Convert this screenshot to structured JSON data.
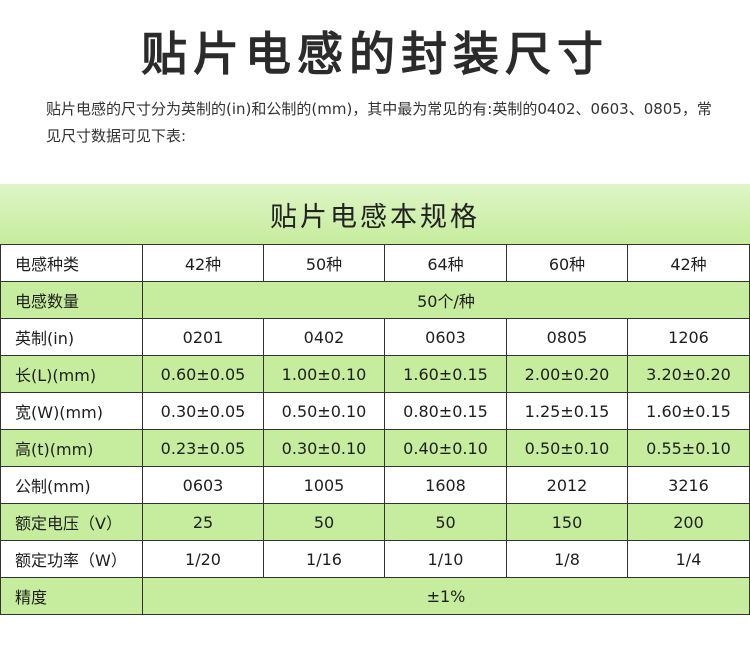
{
  "page": {
    "title": "贴片电感的封装尺寸",
    "intro": "贴片电感的尺寸分为英制的(in)和公制的(mm)，其中最为常见的有:英制的0402、0603、0805，常见尺寸数据可见下表:"
  },
  "table": {
    "title": "贴片电感本规格",
    "rows": [
      {
        "label": "电感种类",
        "cells": [
          "42种",
          "50种",
          "64种",
          "60种",
          "42种"
        ]
      },
      {
        "label": "电感数量",
        "merged": "50个/种"
      },
      {
        "label": "英制(in)",
        "cells": [
          "0201",
          "0402",
          "0603",
          "0805",
          "1206"
        ]
      },
      {
        "label": "长(L)(mm)",
        "cells": [
          "0.60±0.05",
          "1.00±0.10",
          "1.60±0.15",
          "2.00±0.20",
          "3.20±0.20"
        ]
      },
      {
        "label": "宽(W)(mm)",
        "cells": [
          "0.30±0.05",
          "0.50±0.10",
          "0.80±0.15",
          "1.25±0.15",
          "1.60±0.15"
        ]
      },
      {
        "label": "高(t)(mm)",
        "cells": [
          "0.23±0.05",
          "0.30±0.10",
          "0.40±0.10",
          "0.50±0.10",
          "0.55±0.10"
        ]
      },
      {
        "label": "公制(mm)",
        "cells": [
          "0603",
          "1005",
          "1608",
          "2012",
          "3216"
        ]
      },
      {
        "label": "额定电压（V）",
        "cells": [
          "25",
          "50",
          "50",
          "150",
          "200"
        ]
      },
      {
        "label": "额定功率（W）",
        "cells": [
          "1/20",
          "1/16",
          "1/10",
          "1/8",
          "1/4"
        ]
      },
      {
        "label": "精度",
        "merged": "±1%"
      }
    ]
  },
  "colors": {
    "row_green": "#c6ec9d",
    "band_green_light": "#dff5c7",
    "grid_line": "#333333"
  }
}
